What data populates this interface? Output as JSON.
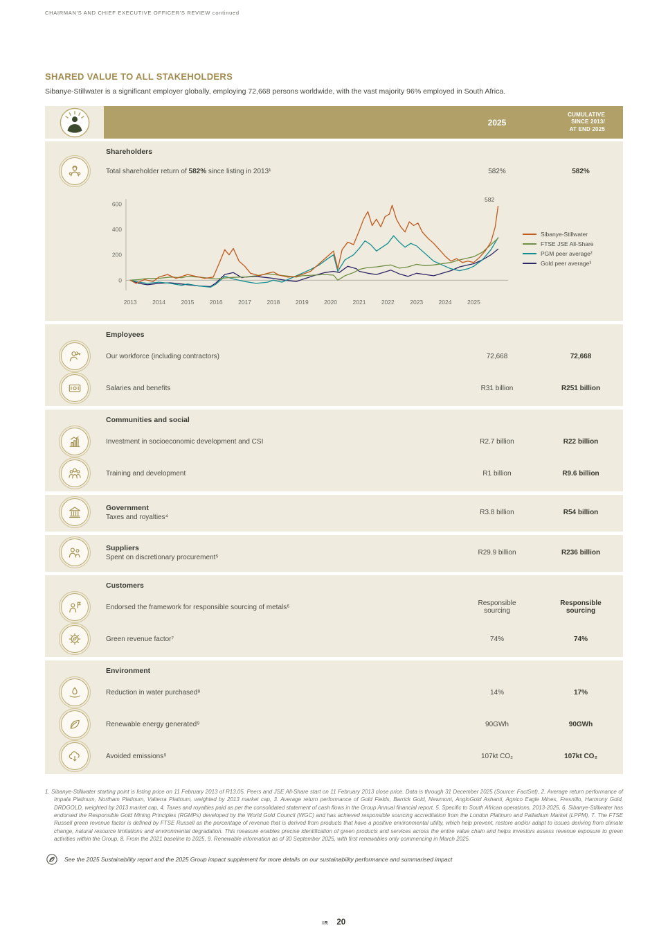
{
  "header": {
    "running_title": "CHAIRMAN'S AND CHIEF EXECUTIVE OFFICER'S REVIEW continued"
  },
  "intro": {
    "title": "SHARED VALUE TO ALL STAKEHOLDERS",
    "paragraph": "Sibanye-Stillwater is a significant employer globally, employing 72,668 persons worldwide, with the vast majority 96% employed in South Africa."
  },
  "table": {
    "col1_header": "2025",
    "col2_header": "CUMULATIVE\nSINCE 2013/\nAT END 2025",
    "header_color": "#b1a168",
    "section_bg": "#efebde",
    "sections": [
      {
        "heading": "Shareholders",
        "rows": [
          {
            "icon": "shareholder-icon",
            "label_parts": [
              "Total shareholder return of ",
              "582%",
              " since listing in 2013¹"
            ],
            "value": "582%",
            "cumulative": "582%"
          }
        ]
      },
      {
        "heading": "Employees",
        "rows": [
          {
            "icon": "workforce-icon",
            "label": "Our workforce (including contractors)",
            "value": "72,668",
            "cumulative": "72,668"
          },
          {
            "icon": "salaries-icon",
            "label": "Salaries and benefits",
            "value": "R31 billion",
            "cumulative": "R251 billion"
          }
        ]
      },
      {
        "heading": "Communities and social",
        "rows": [
          {
            "icon": "investment-icon",
            "label": "Investment in socioeconomic development and CSI",
            "value": "R2.7 billion",
            "cumulative": "R22 billion"
          },
          {
            "icon": "training-icon",
            "label": "Training and development",
            "value": "R1 billion",
            "cumulative": "R9.6 billion"
          }
        ]
      },
      {
        "heading": "Government",
        "rows": [
          {
            "icon": "government-icon",
            "label": "Taxes and royalties⁴",
            "value": "R3.8 billion",
            "cumulative": "R54 billion"
          }
        ]
      },
      {
        "heading": "Suppliers",
        "rows": [
          {
            "icon": "suppliers-icon",
            "label": "Spent on discretionary procurement⁵",
            "value": "R29.9 billion",
            "cumulative": "R236 billion"
          }
        ]
      },
      {
        "heading": "Customers",
        "rows": [
          {
            "icon": "customers-icon",
            "label": "Endorsed the framework for responsible sourcing of metals⁶",
            "value": "Responsible\nsourcing",
            "cumulative": "Responsible\nsourcing"
          },
          {
            "icon": "green-revenue-icon",
            "label": "Green revenue factor⁷",
            "value": "74%",
            "cumulative": "74%"
          }
        ]
      },
      {
        "heading": "Environment",
        "rows": [
          {
            "icon": "water-icon",
            "label": "Reduction in water purchased⁸",
            "value": "14%",
            "cumulative": "17%"
          },
          {
            "icon": "renewable-energy-icon",
            "label": "Renewable energy generated⁹",
            "value": "90GWh",
            "cumulative": "90GWh"
          },
          {
            "icon": "avoided-emissions-icon",
            "label": "Avoided emissions⁹",
            "value": "107kt CO₂",
            "cumulative": "107kt CO₂"
          }
        ]
      }
    ]
  },
  "chart_data": {
    "type": "line",
    "title": "",
    "xlabel": "",
    "ylabel": "",
    "x_range": [
      2013,
      2025.85
    ],
    "ylim": [
      -80,
      640
    ],
    "yticks": [
      0,
      200,
      400,
      600
    ],
    "xticks": [
      2013,
      2014,
      2015,
      2016,
      2017,
      2018,
      2019,
      2020,
      2021,
      2022,
      2023,
      2024,
      2025
    ],
    "grid": false,
    "legend_position": "right",
    "annotation": {
      "text": "582",
      "x": 2025.55,
      "y": 618
    },
    "series": [
      {
        "name": "Sibanye-Stillwater",
        "color": "#c05a1e",
        "points": [
          [
            2013,
            0
          ],
          [
            2013.2,
            -25
          ],
          [
            2013.5,
            5
          ],
          [
            2013.8,
            -10
          ],
          [
            2014,
            25
          ],
          [
            2014.3,
            45
          ],
          [
            2014.6,
            15
          ],
          [
            2015,
            45
          ],
          [
            2015.3,
            30
          ],
          [
            2015.6,
            15
          ],
          [
            2015.9,
            25
          ],
          [
            2016.1,
            130
          ],
          [
            2016.3,
            240
          ],
          [
            2016.45,
            200
          ],
          [
            2016.6,
            250
          ],
          [
            2016.8,
            150
          ],
          [
            2017,
            110
          ],
          [
            2017.2,
            55
          ],
          [
            2017.5,
            35
          ],
          [
            2017.8,
            55
          ],
          [
            2018,
            65
          ],
          [
            2018.2,
            40
          ],
          [
            2018.5,
            25
          ],
          [
            2018.8,
            30
          ],
          [
            2019,
            45
          ],
          [
            2019.3,
            70
          ],
          [
            2019.6,
            130
          ],
          [
            2019.9,
            190
          ],
          [
            2020.1,
            230
          ],
          [
            2020.25,
            90
          ],
          [
            2020.4,
            240
          ],
          [
            2020.6,
            300
          ],
          [
            2020.8,
            280
          ],
          [
            2021,
            390
          ],
          [
            2021.15,
            480
          ],
          [
            2021.3,
            540
          ],
          [
            2021.45,
            430
          ],
          [
            2021.6,
            480
          ],
          [
            2021.75,
            420
          ],
          [
            2021.9,
            500
          ],
          [
            2022.05,
            520
          ],
          [
            2022.15,
            590
          ],
          [
            2022.3,
            480
          ],
          [
            2022.45,
            420
          ],
          [
            2022.6,
            380
          ],
          [
            2022.75,
            460
          ],
          [
            2022.9,
            430
          ],
          [
            2023.05,
            450
          ],
          [
            2023.2,
            380
          ],
          [
            2023.4,
            330
          ],
          [
            2023.6,
            290
          ],
          [
            2023.8,
            240
          ],
          [
            2024,
            190
          ],
          [
            2024.2,
            150
          ],
          [
            2024.4,
            170
          ],
          [
            2024.6,
            140
          ],
          [
            2024.8,
            150
          ],
          [
            2025,
            140
          ],
          [
            2025.2,
            180
          ],
          [
            2025.4,
            230
          ],
          [
            2025.6,
            300
          ],
          [
            2025.75,
            420
          ],
          [
            2025.85,
            582
          ]
        ]
      },
      {
        "name": "FTSE JSE All-Share",
        "color": "#6f8f45",
        "points": [
          [
            2013,
            0
          ],
          [
            2013.3,
            5
          ],
          [
            2013.6,
            15
          ],
          [
            2014,
            15
          ],
          [
            2014.4,
            25
          ],
          [
            2014.8,
            20
          ],
          [
            2015,
            30
          ],
          [
            2015.4,
            25
          ],
          [
            2015.8,
            15
          ],
          [
            2016,
            10
          ],
          [
            2016.4,
            20
          ],
          [
            2016.8,
            25
          ],
          [
            2017,
            25
          ],
          [
            2017.4,
            35
          ],
          [
            2017.8,
            50
          ],
          [
            2018,
            45
          ],
          [
            2018.4,
            35
          ],
          [
            2018.8,
            25
          ],
          [
            2019,
            35
          ],
          [
            2019.4,
            40
          ],
          [
            2019.8,
            45
          ],
          [
            2020.1,
            40
          ],
          [
            2020.25,
            0
          ],
          [
            2020.5,
            35
          ],
          [
            2020.8,
            60
          ],
          [
            2021,
            85
          ],
          [
            2021.3,
            100
          ],
          [
            2021.6,
            105
          ],
          [
            2021.9,
            115
          ],
          [
            2022.1,
            120
          ],
          [
            2022.4,
            95
          ],
          [
            2022.7,
            105
          ],
          [
            2023,
            125
          ],
          [
            2023.3,
            115
          ],
          [
            2023.6,
            120
          ],
          [
            2023.9,
            130
          ],
          [
            2024.2,
            140
          ],
          [
            2024.5,
            160
          ],
          [
            2024.8,
            175
          ],
          [
            2025,
            185
          ],
          [
            2025.3,
            220
          ],
          [
            2025.6,
            280
          ],
          [
            2025.85,
            330
          ]
        ]
      },
      {
        "name": "PGM peer average²",
        "color": "#0f8d8f",
        "points": [
          [
            2013,
            0
          ],
          [
            2013.3,
            -15
          ],
          [
            2013.6,
            -25
          ],
          [
            2014,
            -15
          ],
          [
            2014.4,
            -25
          ],
          [
            2014.8,
            -40
          ],
          [
            2015,
            -30
          ],
          [
            2015.4,
            -45
          ],
          [
            2015.8,
            -55
          ],
          [
            2016,
            -30
          ],
          [
            2016.3,
            30
          ],
          [
            2016.6,
            10
          ],
          [
            2017,
            -10
          ],
          [
            2017.4,
            -25
          ],
          [
            2017.8,
            -15
          ],
          [
            2018,
            0
          ],
          [
            2018.3,
            -15
          ],
          [
            2018.6,
            15
          ],
          [
            2019,
            55
          ],
          [
            2019.3,
            85
          ],
          [
            2019.6,
            120
          ],
          [
            2019.9,
            170
          ],
          [
            2020.1,
            200
          ],
          [
            2020.25,
            70
          ],
          [
            2020.5,
            160
          ],
          [
            2020.8,
            200
          ],
          [
            2021,
            250
          ],
          [
            2021.2,
            310
          ],
          [
            2021.4,
            280
          ],
          [
            2021.6,
            230
          ],
          [
            2021.8,
            260
          ],
          [
            2022,
            290
          ],
          [
            2022.2,
            350
          ],
          [
            2022.4,
            300
          ],
          [
            2022.6,
            260
          ],
          [
            2022.8,
            290
          ],
          [
            2023,
            270
          ],
          [
            2023.3,
            210
          ],
          [
            2023.6,
            150
          ],
          [
            2023.9,
            120
          ],
          [
            2024.2,
            90
          ],
          [
            2024.5,
            75
          ],
          [
            2024.8,
            90
          ],
          [
            2025,
            110
          ],
          [
            2025.3,
            160
          ],
          [
            2025.6,
            240
          ],
          [
            2025.85,
            335
          ]
        ]
      },
      {
        "name": "Gold peer average³",
        "color": "#2e2566",
        "points": [
          [
            2013,
            0
          ],
          [
            2013.3,
            -25
          ],
          [
            2013.6,
            -35
          ],
          [
            2014,
            -25
          ],
          [
            2014.4,
            -20
          ],
          [
            2014.8,
            -30
          ],
          [
            2015,
            -35
          ],
          [
            2015.4,
            -45
          ],
          [
            2015.8,
            -50
          ],
          [
            2016,
            -20
          ],
          [
            2016.3,
            45
          ],
          [
            2016.6,
            60
          ],
          [
            2016.9,
            20
          ],
          [
            2017,
            25
          ],
          [
            2017.4,
            30
          ],
          [
            2017.8,
            20
          ],
          [
            2018,
            15
          ],
          [
            2018.4,
            0
          ],
          [
            2018.8,
            -10
          ],
          [
            2019,
            5
          ],
          [
            2019.4,
            35
          ],
          [
            2019.8,
            60
          ],
          [
            2020.1,
            70
          ],
          [
            2020.3,
            60
          ],
          [
            2020.6,
            110
          ],
          [
            2020.9,
            90
          ],
          [
            2021,
            70
          ],
          [
            2021.3,
            55
          ],
          [
            2021.6,
            45
          ],
          [
            2021.9,
            65
          ],
          [
            2022.1,
            80
          ],
          [
            2022.4,
            50
          ],
          [
            2022.7,
            30
          ],
          [
            2023,
            55
          ],
          [
            2023.3,
            45
          ],
          [
            2023.6,
            35
          ],
          [
            2023.9,
            55
          ],
          [
            2024.2,
            75
          ],
          [
            2024.5,
            105
          ],
          [
            2024.8,
            120
          ],
          [
            2025,
            130
          ],
          [
            2025.3,
            160
          ],
          [
            2025.6,
            200
          ],
          [
            2025.85,
            245
          ]
        ]
      }
    ]
  },
  "footnotes": "1. Sibanye-Stillwater starting point is listing price on 11 February 2013 of R13.05. Peers and JSE All-Share start on 11 February 2013 close price. Data is through 31 December 2025 (Source: FactSet), 2. Average return performance of Impala Platinum, Northam Platinum, Valterra Platinum, weighted by 2013 market cap, 3. Average return performance of Gold Fields, Barrick Gold, Newmont, AngloGold Ashanti, Agnico Eagle Mines, Fresnillo, Harmony Gold, DRDGOLD, weighted by 2013 market cap, 4. Taxes and royalties paid as per the consolidated statement of cash flows in the Group Annual financial report, 5. Specific to South African operations, 2013-2025, 6. Sibanye-Stillwater has endorsed the Responsible Gold Mining Principles (RGMPs) developed by the World Gold Council (WGC) and has achieved responsible sourcing accreditation from the London Platinum and Palladium Market (LPPM), 7. The FTSE Russell green revenue factor is defined by FTSE Russell as the percentage of revenue that is derived from products that have a positive environmental utility, which help prevent, restore and/or adapt to issues deriving from climate change, natural resource limitations and environmental degradation. This measure enables precise identification of green products and services across the entire value chain and helps investors assess revenue exposure to green activities within the Group, 8. From the 2021 baseline to 2025, 9. Renewable information as of 30 September 2025, with first renewables only commencing in March 2025.",
  "note": "See the 2025 Sustainability report and the 2025 Group impact supplement for more details on our sustainability performance and summarised impact",
  "footer": {
    "section": "IR",
    "page": "20"
  }
}
